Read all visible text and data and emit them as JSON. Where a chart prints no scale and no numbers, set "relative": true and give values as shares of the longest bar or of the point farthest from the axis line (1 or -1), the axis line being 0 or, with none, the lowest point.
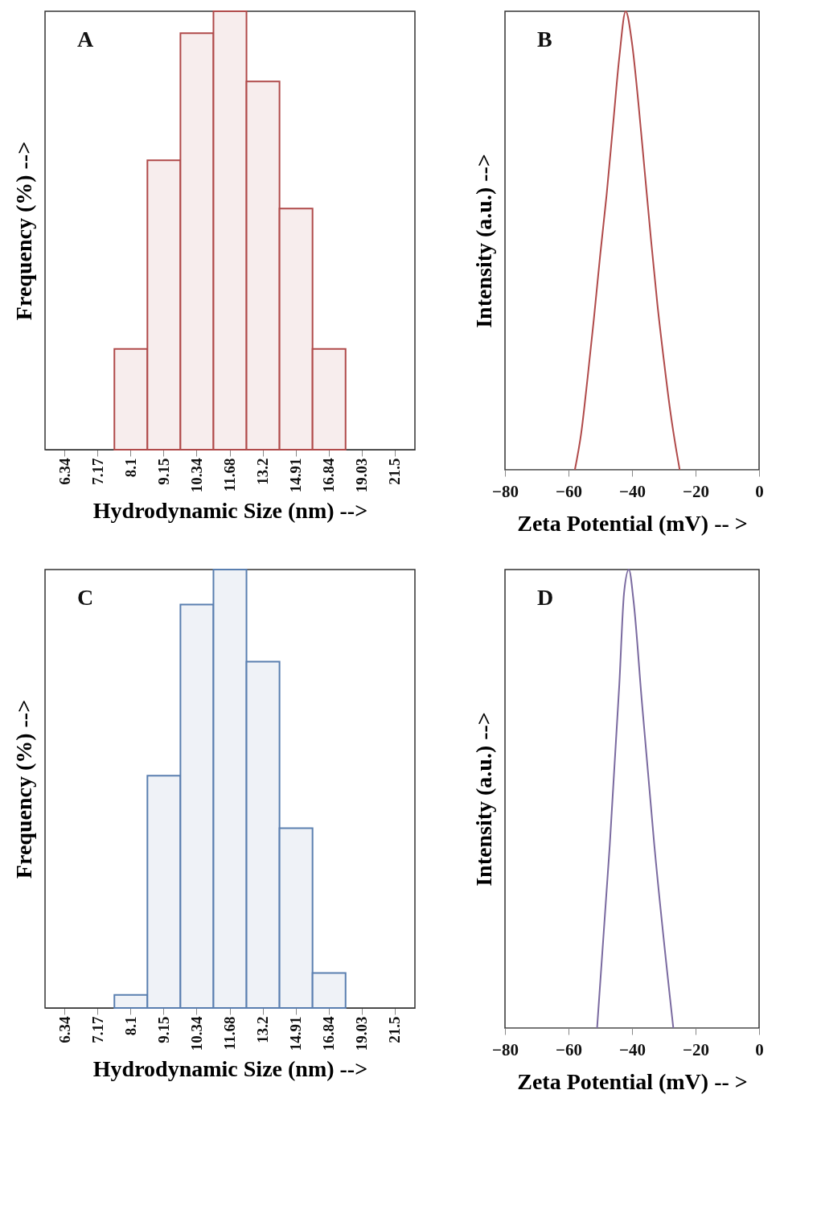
{
  "chart_data": [
    {
      "type": "bar",
      "title": "A",
      "xlabel": "Hydrodynamic Size (nm) -->",
      "ylabel": "Frequency (%) -->",
      "relative": true,
      "categories": [
        "6.34",
        "7.17",
        "8.1",
        "9.15",
        "10.34",
        "11.68",
        "13.2",
        "14.91",
        "16.84",
        "19.03",
        "21.5"
      ],
      "series": [
        {
          "color": "#b04a4a",
          "values": [
            null,
            null,
            0.23,
            0.66,
            0.95,
            1,
            0.84,
            0.55,
            0.23,
            null,
            null
          ]
        }
      ]
    },
    {
      "type": "line",
      "title": "B",
      "xlabel": "Zeta Potential (mV) -- >",
      "ylabel": "Intensity (a.u.) -->",
      "relative": true,
      "xlim": [
        -80,
        0
      ],
      "xticks": [
        -80,
        -60,
        -40,
        -20,
        0
      ],
      "series": [
        {
          "color": "#b04a4a",
          "x": [
            -58,
            -56,
            -54,
            -52,
            -50,
            -48,
            -46,
            -44,
            -42,
            -40,
            -38,
            -36,
            -34,
            -32,
            -30,
            -28,
            -26,
            -25
          ],
          "values": [
            0,
            0.08,
            0.2,
            0.33,
            0.47,
            0.6,
            0.75,
            0.9,
            1,
            0.93,
            0.8,
            0.65,
            0.5,
            0.36,
            0.24,
            0.13,
            0.04,
            0
          ]
        }
      ]
    },
    {
      "type": "bar",
      "title": "C",
      "xlabel": "Hydrodynamic Size (nm) -->",
      "ylabel": "Frequency (%) -->",
      "relative": true,
      "categories": [
        "6.34",
        "7.17",
        "8.1",
        "9.15",
        "10.34",
        "11.68",
        "13.2",
        "14.91",
        "16.84",
        "19.03",
        "21.5"
      ],
      "series": [
        {
          "color": "#5a7fb0",
          "values": [
            null,
            null,
            0.03,
            0.53,
            0.92,
            1,
            0.79,
            0.41,
            0.08,
            null,
            null
          ]
        }
      ]
    },
    {
      "type": "line",
      "title": "D",
      "xlabel": "Zeta Potential (mV) -- >",
      "ylabel": "Intensity (a.u.) -->",
      "relative": true,
      "xlim": [
        -80,
        0
      ],
      "xticks": [
        -80,
        -60,
        -40,
        -20,
        0
      ],
      "series": [
        {
          "color": "#7a6aa0",
          "x": [
            -51,
            -47,
            -44,
            -42.5,
            -41,
            -39.5,
            -37,
            -33,
            -27
          ],
          "values": [
            0,
            0.4,
            0.75,
            0.95,
            1,
            0.93,
            0.72,
            0.4,
            0
          ]
        }
      ]
    }
  ]
}
